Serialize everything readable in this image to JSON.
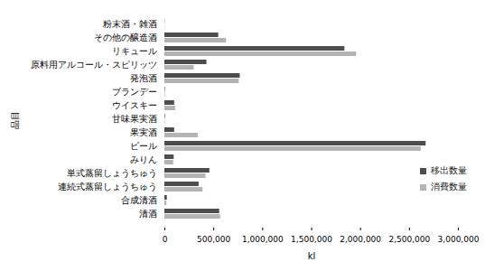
{
  "chart_data": {
    "type": "bar",
    "orientation": "horizontal",
    "xlabel": "kl",
    "ylabel": "品目",
    "categories": [
      "粉末酒・雑酒",
      "その他の醸造酒",
      "リキュール",
      "原料用アルコール・スピリッツ",
      "発泡酒",
      "ブランデー",
      "ウイスキー",
      "甘味果実酒",
      "果実酒",
      "ビール",
      "みりん",
      "単式蒸留しょうちゅう",
      "連続式蒸留しょうちゅう",
      "合成清酒",
      "清酒"
    ],
    "series": [
      {
        "name": "移出数量",
        "color": "#4d4d4d",
        "values": [
          2000,
          550000,
          1840000,
          430000,
          770000,
          5000,
          100000,
          5000,
          100000,
          2670000,
          95000,
          460000,
          350000,
          25000,
          560000
        ]
      },
      {
        "name": "消費数量",
        "color": "#b3b3b3",
        "values": [
          2000,
          630000,
          1960000,
          300000,
          760000,
          5000,
          110000,
          5000,
          340000,
          2620000,
          90000,
          420000,
          390000,
          20000,
          570000
        ]
      }
    ],
    "xlim": [
      0,
      3000000
    ],
    "xticks": [
      0,
      {
        "value": 500000,
        "label": "500,000"
      },
      {
        "value": 1000000,
        "label": "1,000,000"
      },
      {
        "value": 1500000,
        "label": "1,500,000"
      },
      {
        "value": 2000000,
        "label": "2,000,000"
      },
      {
        "value": 2500000,
        "label": "2,500,000"
      },
      {
        "value": 3000000,
        "label": "3,000,000"
      }
    ],
    "grid": false,
    "legend": "right"
  }
}
